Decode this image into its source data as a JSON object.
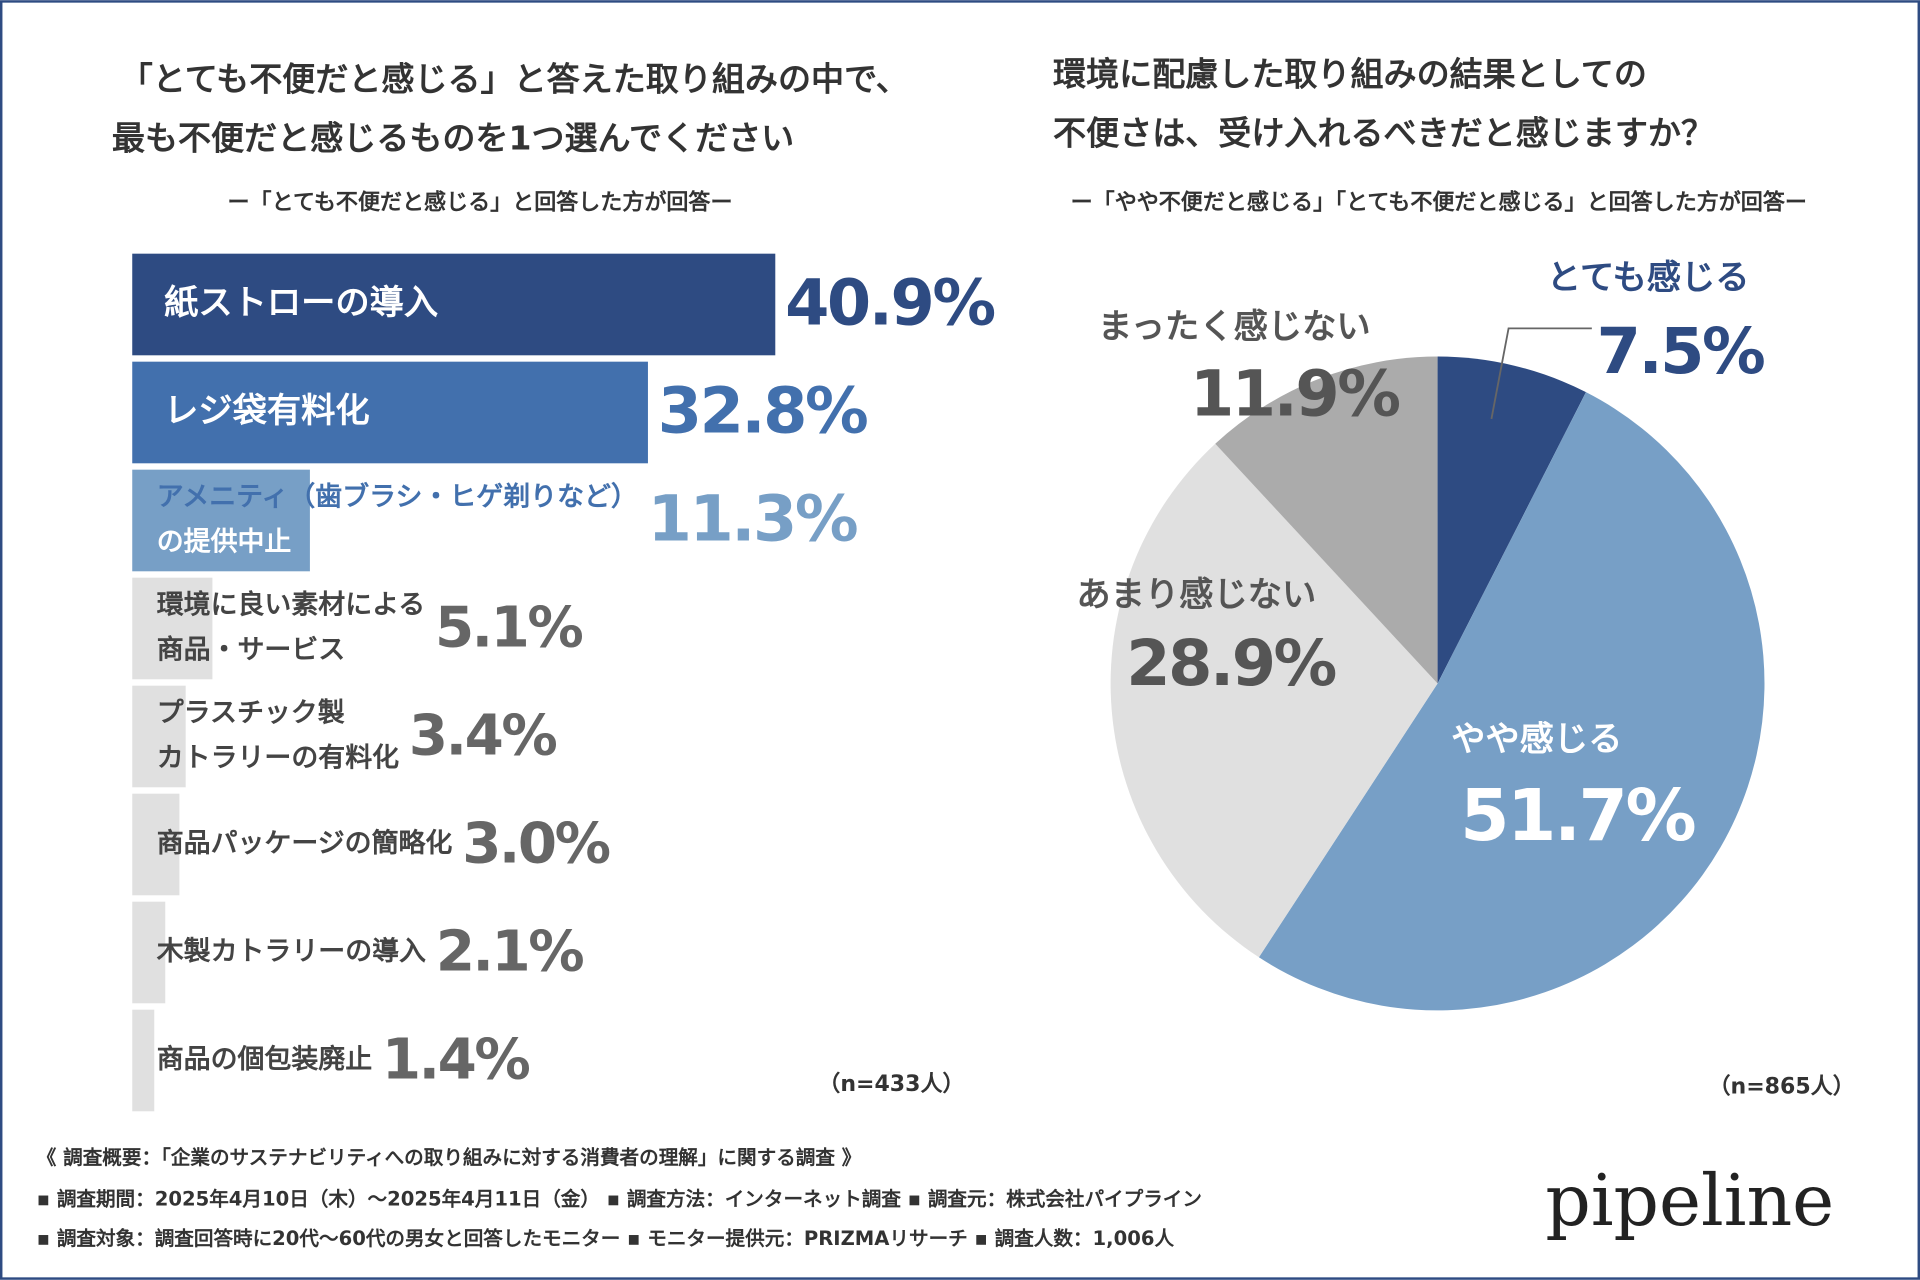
{
  "chart_data": [
    {
      "type": "hbar",
      "title": [
        "「とても不便だと感じる」と答えた取り組みの中で、",
        "最も不便だと感じるものを1つ選んでください"
      ],
      "subtitle": "ー「とても不便だと感じる」と回答した方が回答ー",
      "categories": [
        [
          "紙ストローの導入"
        ],
        [
          "レジ袋有料化"
        ],
        [
          "アメニティ（歯ブラシ・ヒゲ剃りなど）",
          "の提供中止"
        ],
        [
          "環境に良い素材による",
          "商品・サービス"
        ],
        [
          "プラスチック製",
          "カトラリーの有料化"
        ],
        [
          "商品パッケージの簡略化"
        ],
        [
          "木製カトラリーの導入"
        ],
        [
          "商品の個包装廃止"
        ]
      ],
      "values": [
        40.9,
        32.8,
        11.3,
        5.1,
        3.4,
        3.0,
        2.1,
        1.4
      ],
      "value_labels": [
        "40.9%",
        "32.8%",
        "11.3%",
        "5.1%",
        "3.4%",
        "3.0%",
        "2.1%",
        "1.4%"
      ],
      "colors": [
        "#2e4b82",
        "#4270ad",
        "#779fc6",
        "#e0e0e0",
        "#e0e0e0",
        "#e0e0e0",
        "#e0e0e0",
        "#e0e0e0"
      ],
      "note": "（n=433人）"
    },
    {
      "type": "pie",
      "title": [
        "環境に配慮した取り組みの結果としての",
        "不便さは、受け入れるべきだと感じますか？"
      ],
      "subtitle": "ー「やや不便だと感じる」「とても不便だと感じる」と回答した方が回答ー",
      "categories": [
        "とても感じる",
        "やや感じる",
        "あまり感じない",
        "まったく感じない"
      ],
      "values": [
        7.5,
        51.7,
        28.9,
        11.9
      ],
      "value_labels": [
        "7.5%",
        "51.7%",
        "28.9%",
        "11.9%"
      ],
      "colors": [
        "#2e4b82",
        "#779fc6",
        "#e0e0e0",
        "#ababab"
      ],
      "note": "（n=865人）"
    }
  ],
  "footer": [
    "《 調査概要：「企業のサステナビリティへの取り組みに対する消費者の理解」に関する調査 》",
    "▪ 調査期間：2025年4月10日（木）〜2025年4月11日（金） ▪ 調査方法：インターネット調査 ▪ 調査元：株式会社パイプライン",
    "▪ 調査対象：調査回答時に20代〜60代の男女と回答したモニター ▪ モニター提供元：PRIZMAリサーチ ▪ 調査人数：1,006人"
  ],
  "logo": "pipeline"
}
